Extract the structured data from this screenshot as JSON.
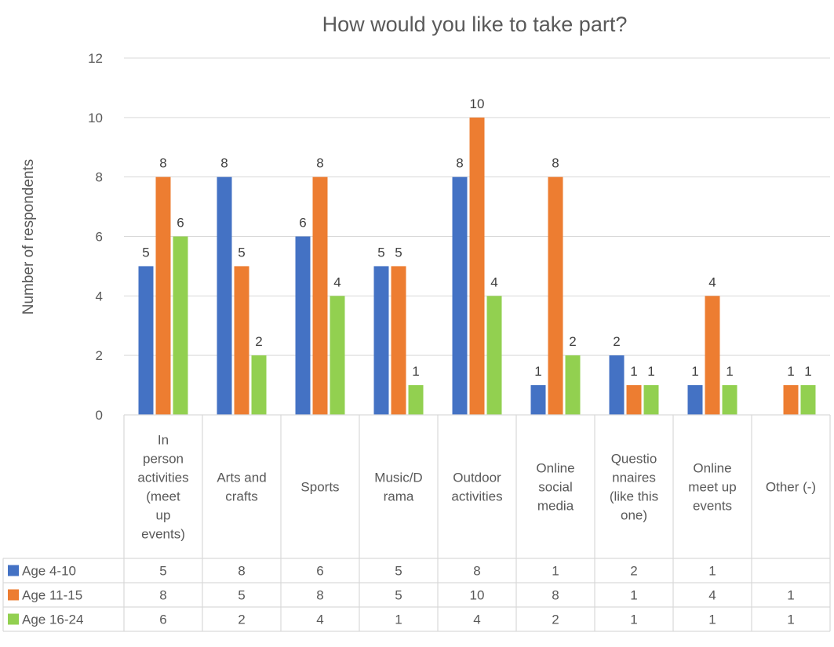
{
  "chart_data": {
    "type": "bar",
    "title": "How would you like to take part?",
    "xlabel": "",
    "ylabel": "Number of respondents",
    "ylim": [
      0,
      12
    ],
    "yticks": [
      0,
      2,
      4,
      6,
      8,
      10,
      12
    ],
    "grid": true,
    "legend": "data-table",
    "categories": [
      "In person activities (meet up events)",
      "Arts and crafts",
      "Sports",
      "Music/Drama",
      "Outdoor activities",
      "Online social media",
      "Questionnaires (like this one)",
      "Online meet up events",
      "Other (-)"
    ],
    "category_lines": [
      [
        "In",
        "person",
        "activities",
        "(meet",
        "up",
        "events)"
      ],
      [
        "Arts and",
        "crafts"
      ],
      [
        "Sports"
      ],
      [
        "Music/D",
        "rama"
      ],
      [
        "Outdoor",
        "activities"
      ],
      [
        "Online",
        "social",
        "media"
      ],
      [
        "Questio",
        "nnaires",
        "(like this",
        "one)"
      ],
      [
        "Online",
        "meet up",
        "events"
      ],
      [
        "Other (-)"
      ]
    ],
    "series": [
      {
        "name": "Age 4-10",
        "color": "#4472C4",
        "values": [
          5,
          8,
          6,
          5,
          8,
          1,
          2,
          1,
          null
        ]
      },
      {
        "name": "Age 11-15",
        "color": "#ED7D31",
        "values": [
          8,
          5,
          8,
          5,
          10,
          8,
          1,
          4,
          1
        ]
      },
      {
        "name": "Age 16-24",
        "color": "#92D050",
        "values": [
          6,
          2,
          4,
          1,
          4,
          2,
          1,
          1,
          1
        ]
      }
    ]
  }
}
